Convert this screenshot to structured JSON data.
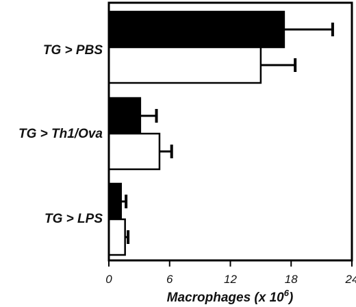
{
  "chart_data": {
    "type": "bar",
    "orientation": "horizontal",
    "categories": [
      "TG > PBS",
      "TG > Th1/Ova",
      "TG > LPS"
    ],
    "series": [
      {
        "fill": "#000000",
        "values": [
          17.3,
          3.1,
          1.2
        ],
        "errors": [
          4.8,
          1.6,
          0.5
        ]
      },
      {
        "fill": "#ffffff",
        "values": [
          15.0,
          5.0,
          1.6
        ],
        "errors": [
          3.4,
          1.2,
          0.3
        ]
      }
    ],
    "xlabel": "Macrophages (x 10",
    "xlabel_sup": "6",
    "xlabel_end": ")",
    "ticks": [
      "0",
      "6",
      "12",
      "18",
      "24"
    ],
    "tick_values": [
      0,
      6,
      12,
      18,
      24
    ],
    "xlim": [
      0,
      24
    ],
    "grid": false,
    "legend": "none"
  }
}
